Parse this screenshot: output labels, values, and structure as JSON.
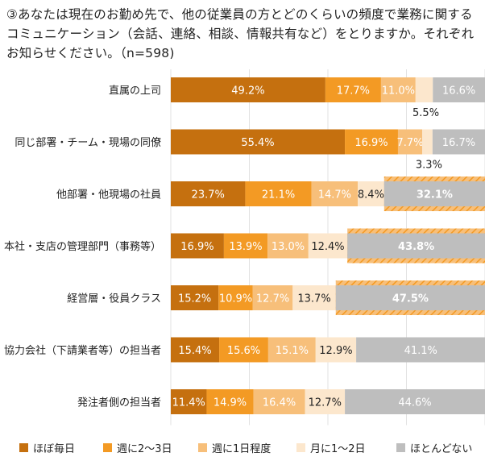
{
  "title": "③あなたは現在のお勤め先で、他の従業員の方とどのくらいの頻度で業務に関するコミュニケーション（会話、連絡、相談、情報共有など）をとりますか。それぞれお知らせください。（n=598)",
  "colors": {
    "daily": "#C5700F",
    "week23": "#F39A24",
    "week1": "#F7BF7A",
    "month12": "#FCE7CD",
    "rarely": "#BEBEBE"
  },
  "chart_data": {
    "type": "bar",
    "orientation": "horizontal",
    "stacked": true,
    "unit": "%",
    "title": "③あなたは現在のお勤め先で、他の従業員の方とどのくらいの頻度で業務に関するコミュニケーション（会話、連絡、相談、情報共有など）をとりますか。それぞれお知らせください。（n=598)",
    "categories": [
      "直属の上司",
      "同じ部署・チーム・現場の同僚",
      "他部署・他現場の社員",
      "本社・支店の管理部門（事務等）",
      "経営層・役員クラス",
      "協力会社（下請業者等）の担当者",
      "発注者側の担当者"
    ],
    "series": [
      {
        "name": "ほぼ毎日",
        "values": [
          49.2,
          55.4,
          23.7,
          16.9,
          15.2,
          15.4,
          11.4
        ]
      },
      {
        "name": "週に2～3日",
        "values": [
          17.7,
          16.9,
          21.1,
          13.9,
          10.9,
          15.6,
          14.9
        ]
      },
      {
        "name": "週に1日程度",
        "values": [
          11.0,
          7.7,
          14.7,
          13.0,
          12.7,
          15.1,
          16.4
        ]
      },
      {
        "name": "月に1～2日",
        "values": [
          5.5,
          3.3,
          8.4,
          12.4,
          13.7,
          12.9,
          12.7
        ]
      },
      {
        "name": "ほとんどない",
        "values": [
          16.6,
          16.7,
          32.1,
          43.8,
          47.5,
          41.1,
          44.6
        ]
      }
    ],
    "labels": [
      [
        "49.2%",
        "17.7%",
        "11.0%",
        "5.5%",
        "16.6%"
      ],
      [
        "55.4%",
        "16.9%",
        "7.7%",
        "3.3%",
        "16.7%"
      ],
      [
        "23.7%",
        "21.1%",
        "14.7%",
        "8.4%",
        "32.1%"
      ],
      [
        "16.9%",
        "13.9%",
        "13.0%",
        "12.4%",
        "43.8%"
      ],
      [
        "15.2%",
        "10.9%",
        "12.7%",
        "13.7%",
        "47.5%"
      ],
      [
        "15.4%",
        "15.6%",
        "15.1%",
        "12.9%",
        "41.1%"
      ],
      [
        "11.4%",
        "14.9%",
        "16.4%",
        "12.7%",
        "44.6%"
      ]
    ],
    "highlighted": [
      [
        false,
        false,
        false,
        false,
        false
      ],
      [
        false,
        false,
        false,
        false,
        false
      ],
      [
        false,
        false,
        false,
        false,
        true
      ],
      [
        false,
        false,
        false,
        false,
        true
      ],
      [
        false,
        false,
        false,
        false,
        true
      ],
      [
        false,
        false,
        false,
        false,
        false
      ],
      [
        false,
        false,
        false,
        false,
        false
      ]
    ],
    "xlim": [
      0,
      100
    ],
    "grid": true,
    "legend_position": "bottom"
  }
}
